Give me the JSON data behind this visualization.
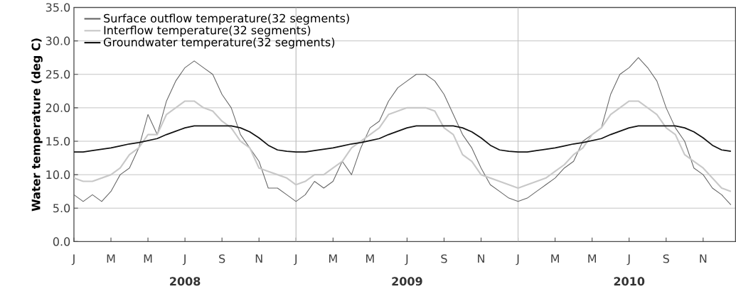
{
  "chart_data": {
    "type": "line",
    "ylabel": "Water temperature (deg C)",
    "categories": [
      "J",
      null,
      null,
      null,
      "M",
      null,
      null,
      null,
      "M",
      null,
      null,
      null,
      "J",
      null,
      null,
      null,
      "S",
      null,
      null,
      null,
      "N",
      null,
      null,
      null,
      "J",
      null,
      null,
      null,
      "M",
      null,
      null,
      null,
      "M",
      null,
      null,
      null,
      "J",
      null,
      null,
      null,
      "S",
      null,
      null,
      null,
      "N",
      null,
      null,
      null,
      "J",
      null,
      null,
      null,
      "M",
      null,
      null,
      null,
      "M",
      null,
      null,
      null,
      "J",
      null,
      null,
      null,
      "S",
      null,
      null,
      null,
      "N",
      null,
      null,
      null
    ],
    "ylim": [
      0,
      35
    ],
    "yticks": [
      {
        "value": 0,
        "label": "0.0"
      },
      {
        "value": 5,
        "label": "5.0"
      },
      {
        "value": 10,
        "label": "10.0"
      },
      {
        "value": 15,
        "label": "15.0"
      },
      {
        "value": 20,
        "label": "20.0"
      },
      {
        "value": 25,
        "label": "25.0"
      },
      {
        "value": 30,
        "label": "30.0"
      },
      {
        "value": 35,
        "label": "35.0"
      }
    ],
    "grid": true,
    "legend": "top left",
    "marker": "none",
    "line_style": "solid",
    "annotations": [
      "2008",
      "2009",
      "2010"
    ],
    "series": [
      {
        "name": "Surface outflow temperature(32 segments)",
        "color": "#666666",
        "values": [
          7,
          6,
          7,
          6,
          7.5,
          10,
          11,
          14,
          19,
          16,
          21,
          24,
          26,
          27,
          26,
          25,
          22,
          20,
          16,
          14,
          12,
          8,
          8,
          7,
          6,
          7,
          9,
          8,
          9,
          12,
          10,
          14,
          17,
          18,
          21,
          23,
          24,
          25,
          25,
          24,
          22,
          19,
          16,
          14,
          11,
          8.5,
          7.5,
          6.5,
          6,
          6.5,
          7.5,
          8.5,
          9.5,
          11,
          12,
          15,
          16,
          17,
          22,
          25,
          26,
          27.5,
          26,
          24,
          20,
          17,
          15,
          11,
          10,
          8,
          7,
          5.5
        ]
      },
      {
        "name": "Interflow temperature(32 segments)",
        "color": "#c8c8c8",
        "values": [
          9.5,
          9,
          9,
          9.5,
          10,
          11,
          13,
          14,
          16,
          16,
          19,
          20,
          21,
          21,
          20,
          19.5,
          18,
          17,
          15,
          14,
          11,
          10.5,
          10,
          9.5,
          8.5,
          9,
          10,
          10,
          11,
          12,
          14,
          15,
          16,
          17,
          19,
          19.5,
          20,
          20,
          20,
          19.5,
          17,
          16,
          13,
          12,
          10,
          9.5,
          9,
          8.5,
          8,
          8.5,
          9,
          9.5,
          10.5,
          11.5,
          13,
          14,
          16,
          17,
          19,
          20,
          21,
          21,
          20,
          19,
          17,
          16,
          13,
          12,
          11,
          9.5,
          8,
          7.5
        ]
      },
      {
        "name": "Groundwater temperature(32 segments)",
        "color": "#111111",
        "values": [
          13.4,
          13.4,
          13.6,
          13.8,
          14.0,
          14.3,
          14.6,
          14.8,
          15.1,
          15.4,
          16.0,
          16.5,
          17.0,
          17.3,
          17.3,
          17.3,
          17.3,
          17.3,
          17.0,
          16.4,
          15.5,
          14.4,
          13.7,
          13.5,
          13.4,
          13.4,
          13.6,
          13.8,
          14.0,
          14.3,
          14.6,
          14.8,
          15.1,
          15.4,
          16.0,
          16.5,
          17.0,
          17.3,
          17.3,
          17.3,
          17.3,
          17.3,
          17.0,
          16.4,
          15.5,
          14.4,
          13.7,
          13.5,
          13.4,
          13.4,
          13.6,
          13.8,
          14.0,
          14.3,
          14.6,
          14.8,
          15.1,
          15.4,
          16.0,
          16.5,
          17.0,
          17.3,
          17.3,
          17.3,
          17.3,
          17.3,
          17.0,
          16.4,
          15.5,
          14.4,
          13.7,
          13.5
        ]
      }
    ]
  }
}
